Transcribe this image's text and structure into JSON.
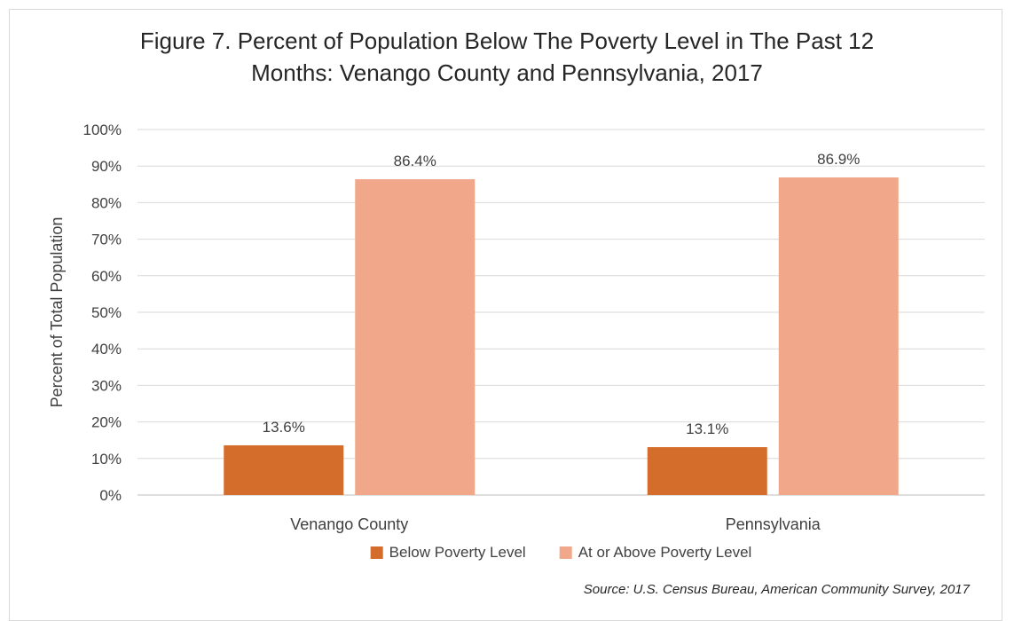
{
  "chart_data": {
    "type": "bar",
    "title_line1": "Figure 7. Percent of Population Below The Poverty Level in The Past 12",
    "title_line2": "Months: Venango County and Pennsylvania, 2017",
    "ylabel": "Percent of Total Population",
    "xlabel": "",
    "ylim": [
      0,
      100
    ],
    "ytick_values": [
      0,
      10,
      20,
      30,
      40,
      50,
      60,
      70,
      80,
      90,
      100
    ],
    "ytick_labels": [
      "0%",
      "10%",
      "20%",
      "30%",
      "40%",
      "50%",
      "60%",
      "70%",
      "80%",
      "90%",
      "100%"
    ],
    "categories": [
      "Venango County",
      "Pennsylvania"
    ],
    "series": [
      {
        "name": "Below Poverty Level",
        "values": [
          13.6,
          13.1
        ],
        "labels": [
          "13.6%",
          "13.1%"
        ],
        "color": "#d46c2b"
      },
      {
        "name": "At or Above Poverty Level",
        "values": [
          86.4,
          86.9
        ],
        "labels": [
          "86.4%",
          "86.9%"
        ],
        "color": "#f1a88a"
      }
    ],
    "grid": true,
    "legend_position": "bottom",
    "source": "Source: U.S. Census Bureau, American Community Survey, 2017"
  }
}
